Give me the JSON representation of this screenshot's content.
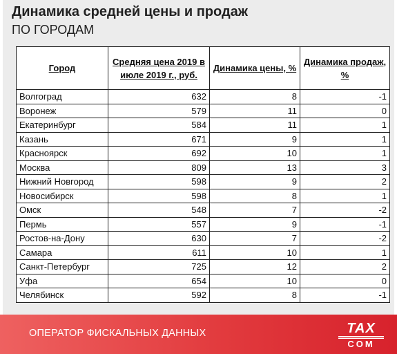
{
  "header": {
    "title": "Динамика средней цены и продаж",
    "subtitle": "ПО ГОРОДАМ"
  },
  "table": {
    "columns": [
      "Город",
      "Средняя цена 2019 в июле 2019 г., руб.",
      "Динамика цены, %",
      "Динамика продаж, %"
    ],
    "rows": [
      [
        "Волгоград",
        "632",
        "8",
        "-1"
      ],
      [
        "Воронеж",
        "579",
        "11",
        "0"
      ],
      [
        "Екатеринбург",
        "584",
        "11",
        "1"
      ],
      [
        "Казань",
        "671",
        "9",
        "1"
      ],
      [
        "Красноярск",
        "692",
        "10",
        "1"
      ],
      [
        "Москва",
        "809",
        "13",
        "3"
      ],
      [
        "Нижний Новгород",
        "598",
        "9",
        "2"
      ],
      [
        "Новосибирск",
        "598",
        "8",
        "1"
      ],
      [
        "Омск",
        "548",
        "7",
        "-2"
      ],
      [
        "Пермь",
        "557",
        "9",
        "-1"
      ],
      [
        "Ростов-на-Дону",
        "630",
        "7",
        "-2"
      ],
      [
        "Самара",
        "611",
        "10",
        "1"
      ],
      [
        "Санкт-Петербург",
        "725",
        "12",
        "2"
      ],
      [
        "Уфа",
        "654",
        "10",
        "0"
      ],
      [
        "Челябинск",
        "592",
        "8",
        "-1"
      ]
    ]
  },
  "footer": {
    "text": "ОПЕРАТОР ФИСКАЛЬНЫХ ДАННЫХ",
    "logo_top": "TAX",
    "logo_bottom": "COM",
    "background": "#e23b3e"
  }
}
